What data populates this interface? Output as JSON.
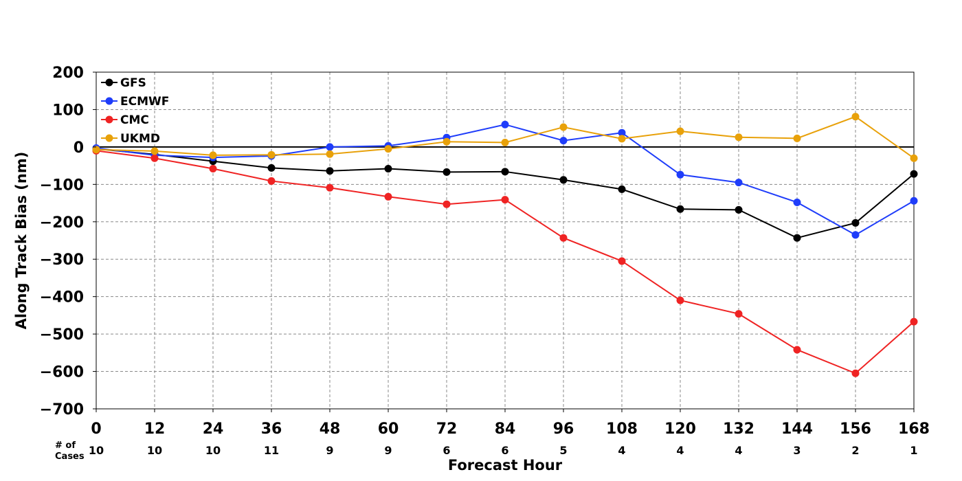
{
  "chart_data": {
    "type": "line",
    "title": "",
    "xlabel": "Forecast Hour",
    "ylabel": "Along Track Bias (nm)",
    "xlim": [
      0,
      168
    ],
    "ylim": [
      -700,
      200
    ],
    "x_ticks": [
      0,
      12,
      24,
      36,
      48,
      60,
      72,
      84,
      96,
      108,
      120,
      132,
      144,
      156,
      168
    ],
    "y_ticks": [
      200,
      100,
      0,
      -100,
      -200,
      -300,
      -400,
      -500,
      -600,
      -700
    ],
    "y_tick_labels": [
      "200",
      "100",
      "0",
      "−100",
      "−200",
      "−300",
      "−400",
      "−500",
      "−600",
      "−700"
    ],
    "grid": true,
    "legend_position": "top-left",
    "cases_label": "# of Cases",
    "cases_label_lines": [
      "# of",
      "Cases"
    ],
    "cases": [
      "10",
      "10",
      "10",
      "11",
      "9",
      "9",
      "6",
      "6",
      "5",
      "4",
      "4",
      "4",
      "3",
      "2",
      "1"
    ],
    "x": [
      0,
      12,
      24,
      36,
      48,
      60,
      72,
      84,
      96,
      108,
      120,
      132,
      144,
      156,
      168
    ],
    "series": [
      {
        "name": "GFS",
        "color": "#000000",
        "values": [
          -5,
          -20,
          -38,
          -56,
          -64,
          -58,
          -67,
          -66,
          -88,
          -113,
          -166,
          -168,
          -243,
          -203,
          -72
        ]
      },
      {
        "name": "ECMWF",
        "color": "#1f3dfa",
        "values": [
          -3,
          -22,
          -28,
          -24,
          0,
          3,
          25,
          60,
          17,
          38,
          -74,
          -95,
          -148,
          -235,
          -144
        ]
      },
      {
        "name": "CMC",
        "color": "#ef2323",
        "values": [
          -10,
          -30,
          -58,
          -91,
          -109,
          -133,
          -153,
          -141,
          -243,
          -305,
          -410,
          -446,
          -542,
          -605,
          -467
        ]
      },
      {
        "name": "UKMD",
        "color": "#e8a10a",
        "values": [
          -7,
          -11,
          -22,
          -21,
          -19,
          -5,
          14,
          12,
          53,
          22,
          42,
          26,
          23,
          81,
          -30
        ]
      }
    ]
  }
}
